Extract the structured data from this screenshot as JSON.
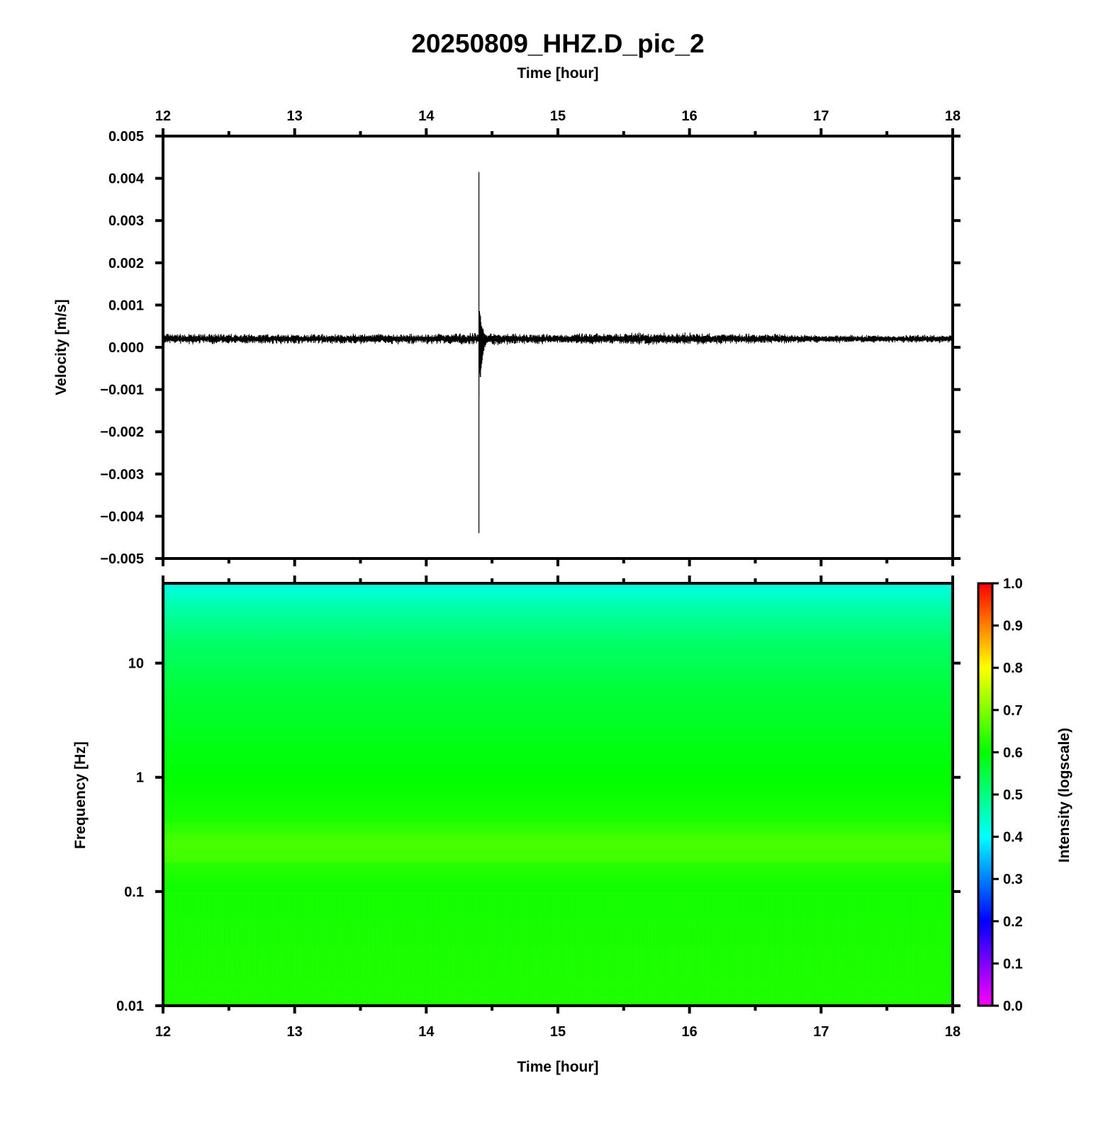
{
  "title": "20250809_HHZ.D_pic_2",
  "colors": {
    "axis": "#000000",
    "trace": "#000000",
    "background": "#ffffff",
    "colormap": [
      "#ff00ff",
      "#0000ff",
      "#00ffff",
      "#00ff00",
      "#ffff00",
      "#ff0000"
    ]
  },
  "chart_data": [
    {
      "type": "line",
      "name": "waveform",
      "xlabel": "Time [hour]",
      "ylabel": "Velocity [m/s]",
      "xlim": [
        12,
        18
      ],
      "ylim": [
        -0.005,
        0.005
      ],
      "xticks": [
        "12",
        "13",
        "14",
        "15",
        "16",
        "17",
        "18"
      ],
      "yticks": [
        "0.005",
        "0.004",
        "0.003",
        "0.002",
        "0.001",
        "0.000",
        "−0.001",
        "−0.002",
        "−0.003",
        "−0.004",
        "−0.005"
      ],
      "x_axis_position": "top",
      "grid": false,
      "baseline": 0.0002,
      "noise_amplitude": 0.0001,
      "noise_points": [
        [
          12.0,
          0.0001
        ],
        [
          12.5,
          0.0001
        ],
        [
          13.0,
          0.0001
        ],
        [
          13.5,
          0.0001
        ],
        [
          14.0,
          0.0001
        ],
        [
          14.5,
          0.00012
        ],
        [
          15.0,
          0.0001
        ],
        [
          15.5,
          0.00012
        ],
        [
          16.0,
          0.00012
        ],
        [
          16.5,
          0.0001
        ],
        [
          17.0,
          8e-05
        ],
        [
          17.5,
          8e-05
        ],
        [
          18.0,
          8e-05
        ]
      ],
      "event": {
        "time": 14.4,
        "peak_max": 0.00415,
        "peak_min": -0.0044,
        "coda_max": 0.0012,
        "coda_min": -0.0014
      }
    },
    {
      "type": "heatmap",
      "name": "spectrogram",
      "xlabel": "Time [hour]",
      "ylabel": "Frequency [Hz]",
      "xlim": [
        12,
        18
      ],
      "ylim": [
        0.01,
        50
      ],
      "y_scale": "log",
      "xticks": [
        "12",
        "13",
        "14",
        "15",
        "16",
        "17",
        "18"
      ],
      "yticks": [
        "10",
        "1",
        "0.1",
        "0.01"
      ],
      "intensity_profile": [
        [
          50,
          0.42
        ],
        [
          30,
          0.47
        ],
        [
          15,
          0.52
        ],
        [
          5,
          0.56
        ],
        [
          1,
          0.6
        ],
        [
          0.4,
          0.62
        ],
        [
          0.3,
          0.65
        ],
        [
          0.1,
          0.61
        ],
        [
          0.01,
          0.62
        ]
      ],
      "colorbar": {
        "label": "Intensity (logscale)",
        "range": [
          0.0,
          1.0
        ],
        "ticks": [
          "1.0",
          "0.9",
          "0.8",
          "0.7",
          "0.6",
          "0.5",
          "0.4",
          "0.3",
          "0.2",
          "0.1",
          "0.0"
        ]
      }
    }
  ]
}
